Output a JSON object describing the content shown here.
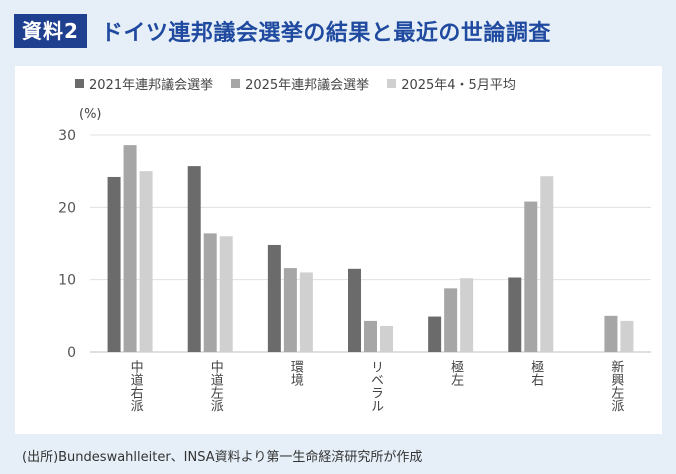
{
  "header": {
    "badge": "資料2",
    "title": "ドイツ連邦議会選挙の結果と最近の世論調査"
  },
  "source": "(出所)Bundeswahlleiter、INSA資料より第一生命経済研究所が作成",
  "colors": {
    "s1": "#6b6b6b",
    "s2": "#a6a6a6",
    "s3": "#d0d0d0"
  },
  "chart_data": {
    "type": "bar",
    "ylabel": "(%)",
    "ylim": [
      0,
      30
    ],
    "yticks": [
      0,
      10,
      20,
      30
    ],
    "legend_position": "top",
    "categories": [
      "中道右派",
      "中道左派",
      "環境",
      "リベラル",
      "極左",
      "極右",
      "新興左派"
    ],
    "series": [
      {
        "name": "2021年連邦議会選挙",
        "values": [
          24.2,
          25.7,
          14.8,
          11.5,
          4.9,
          10.3,
          null
        ]
      },
      {
        "name": "2025年連邦議会選挙",
        "values": [
          28.6,
          16.4,
          11.6,
          4.3,
          8.8,
          20.8,
          5.0
        ]
      },
      {
        "name": "2025年4・5月平均",
        "values": [
          25.0,
          16.0,
          11.0,
          3.6,
          10.2,
          24.3,
          4.3
        ]
      }
    ]
  }
}
